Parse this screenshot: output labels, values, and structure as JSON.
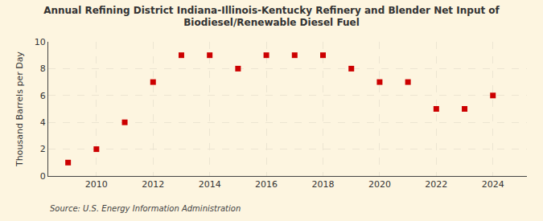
{
  "chart_data": {
    "type": "scatter",
    "title": "Annual Refining District Indiana-Illinois-Kentucky Refinery and Blender Net Input of\nBiodiesel/Renewable Diesel Fuel",
    "ylabel": "Thousand Barrels per Day",
    "source": "Source: U.S. Energy Information Administration",
    "x": [
      2009,
      2010,
      2011,
      2012,
      2013,
      2014,
      2015,
      2016,
      2017,
      2018,
      2019,
      2020,
      2021,
      2022,
      2023,
      2024
    ],
    "values": [
      1.0,
      2.0,
      4.0,
      7.0,
      9.0,
      9.0,
      8.0,
      9.0,
      9.0,
      9.0,
      8.0,
      7.0,
      7.0,
      5.0,
      5.0,
      6.0
    ],
    "color": "#cc0000",
    "marker": "square",
    "xlim": [
      2008.3,
      2025.2
    ],
    "xticks": [
      2010,
      2012,
      2014,
      2016,
      2018,
      2020,
      2022,
      2024
    ],
    "ylim": [
      0,
      10
    ],
    "yticks": [
      0,
      2,
      4,
      6,
      8,
      10
    ],
    "grid": true
  }
}
